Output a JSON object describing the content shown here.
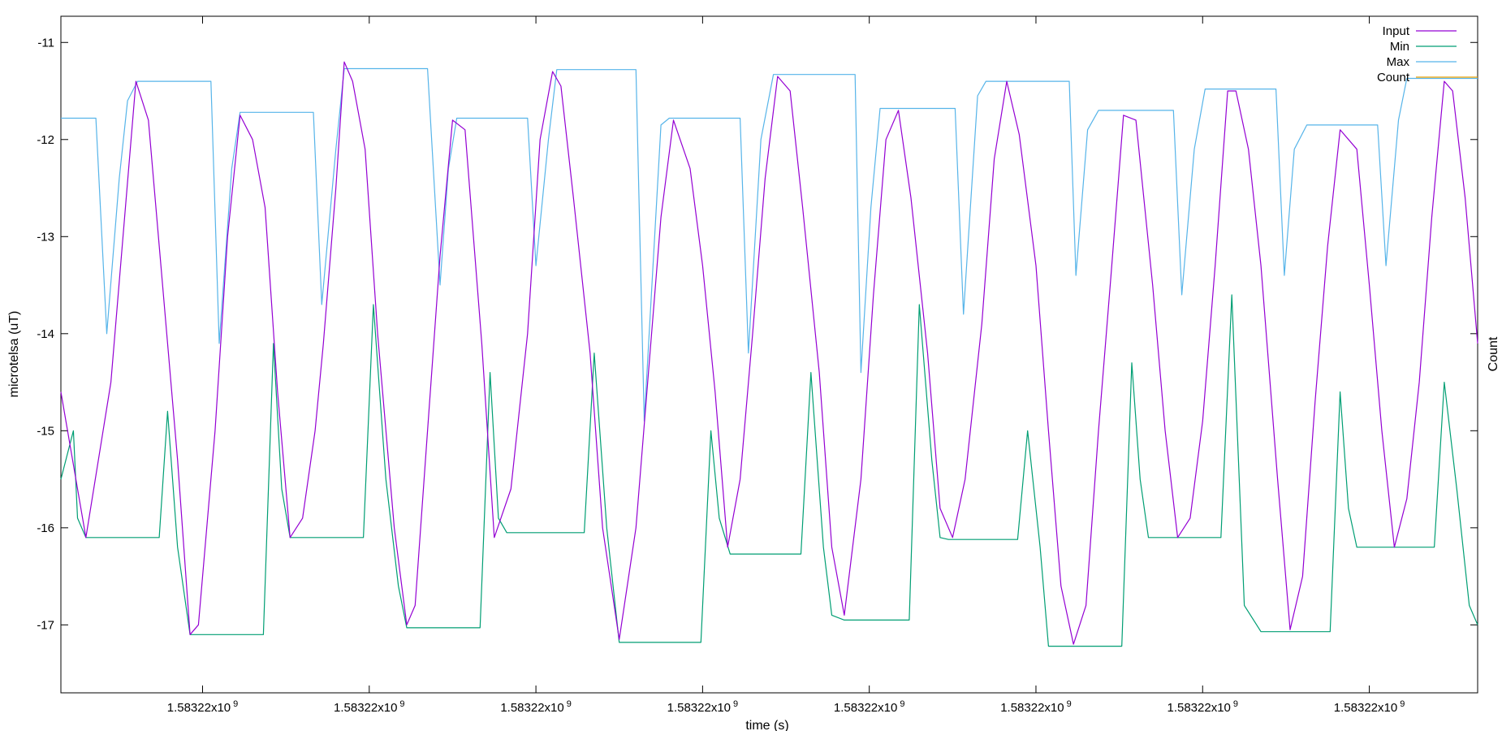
{
  "chart_data": {
    "type": "line",
    "xlabel": "time (s)",
    "ylabel": "microtelsa (uT)",
    "y2label": "Count",
    "ylim": [
      -17.7,
      -10.73
    ],
    "xlim": [
      0,
      170
    ],
    "yticks": [
      -11,
      -12,
      -13,
      -14,
      -15,
      -16,
      -17
    ],
    "xticks": [
      {
        "value": 17,
        "label": "1.58322x10",
        "exp": "9"
      },
      {
        "value": 37,
        "label": "1.58322x10",
        "exp": "9"
      },
      {
        "value": 57,
        "label": "1.58322x10",
        "exp": "9"
      },
      {
        "value": 77,
        "label": "1.58322x10",
        "exp": "9"
      },
      {
        "value": 97,
        "label": "1.58322x10",
        "exp": "9"
      },
      {
        "value": 117,
        "label": "1.58322x10",
        "exp": "9"
      },
      {
        "value": 137,
        "label": "1.58322x10",
        "exp": "9"
      },
      {
        "value": 157,
        "label": "1.58322x10",
        "exp": "9"
      }
    ],
    "grid": false,
    "legend_position": "top-right",
    "series": [
      {
        "name": "Input",
        "color": "#9400d3",
        "points": [
          [
            0,
            -14.6
          ],
          [
            3,
            -16.1
          ],
          [
            6,
            -14.5
          ],
          [
            9,
            -11.4
          ],
          [
            10.5,
            -11.8
          ],
          [
            12,
            -13.3
          ],
          [
            14,
            -15.3
          ],
          [
            15.5,
            -17.1
          ],
          [
            16.5,
            -17.0
          ],
          [
            18.5,
            -15.0
          ],
          [
            20,
            -13.0
          ],
          [
            21.5,
            -11.75
          ],
          [
            23,
            -12.0
          ],
          [
            24.5,
            -12.7
          ],
          [
            26,
            -14.6
          ],
          [
            27.5,
            -16.1
          ],
          [
            29,
            -15.9
          ],
          [
            30.5,
            -15.0
          ],
          [
            31.5,
            -14.1
          ],
          [
            33,
            -12.5
          ],
          [
            34,
            -11.2
          ],
          [
            35,
            -11.4
          ],
          [
            36.5,
            -12.1
          ],
          [
            38,
            -14.0
          ],
          [
            40,
            -16.0
          ],
          [
            41.5,
            -17.0
          ],
          [
            42.5,
            -16.8
          ],
          [
            44,
            -15.0
          ],
          [
            45.5,
            -13.2
          ],
          [
            47,
            -11.8
          ],
          [
            48.5,
            -11.9
          ],
          [
            50.5,
            -14.1
          ],
          [
            52,
            -16.1
          ],
          [
            54,
            -15.6
          ],
          [
            56,
            -14.0
          ],
          [
            57.5,
            -12.0
          ],
          [
            59,
            -11.3
          ],
          [
            60,
            -11.45
          ],
          [
            61.5,
            -12.6
          ],
          [
            63.5,
            -14.2
          ],
          [
            65,
            -16.0
          ],
          [
            67,
            -17.15
          ],
          [
            69,
            -16.0
          ],
          [
            70.5,
            -14.4
          ],
          [
            72,
            -12.8
          ],
          [
            73.5,
            -11.8
          ],
          [
            75.5,
            -12.3
          ],
          [
            77,
            -13.3
          ],
          [
            78.5,
            -14.6
          ],
          [
            80,
            -16.2
          ],
          [
            81.5,
            -15.5
          ],
          [
            83,
            -14.0
          ],
          [
            84.5,
            -12.4
          ],
          [
            86,
            -11.35
          ],
          [
            87.5,
            -11.5
          ],
          [
            89,
            -12.7
          ],
          [
            91,
            -14.4
          ],
          [
            92.5,
            -16.2
          ],
          [
            94,
            -16.9
          ],
          [
            96,
            -15.5
          ],
          [
            97.5,
            -13.6
          ],
          [
            99,
            -12.0
          ],
          [
            100.5,
            -11.7
          ],
          [
            102,
            -12.6
          ],
          [
            104,
            -14.2
          ],
          [
            105.5,
            -15.8
          ],
          [
            107,
            -16.1
          ],
          [
            108.5,
            -15.5
          ],
          [
            110.5,
            -13.9
          ],
          [
            112,
            -12.2
          ],
          [
            113.5,
            -11.4
          ],
          [
            115,
            -11.95
          ],
          [
            117,
            -13.3
          ],
          [
            118.5,
            -15.0
          ],
          [
            120,
            -16.6
          ],
          [
            121.5,
            -17.2
          ],
          [
            123,
            -16.8
          ],
          [
            124.5,
            -15.0
          ],
          [
            126,
            -13.4
          ],
          [
            127.5,
            -11.75
          ],
          [
            129,
            -11.8
          ],
          [
            131,
            -13.5
          ],
          [
            132.5,
            -15.0
          ],
          [
            134,
            -16.1
          ],
          [
            135.5,
            -15.9
          ],
          [
            137,
            -14.9
          ],
          [
            138.5,
            -13.3
          ],
          [
            140,
            -11.5
          ],
          [
            141,
            -11.5
          ],
          [
            142.5,
            -12.1
          ],
          [
            144,
            -13.3
          ],
          [
            146,
            -15.5
          ],
          [
            147.5,
            -17.05
          ],
          [
            149,
            -16.5
          ],
          [
            150.5,
            -14.7
          ],
          [
            152,
            -13.1
          ],
          [
            153.5,
            -11.9
          ],
          [
            155.5,
            -12.1
          ],
          [
            157,
            -13.5
          ],
          [
            158.5,
            -15.0
          ],
          [
            160,
            -16.2
          ],
          [
            161.5,
            -15.7
          ],
          [
            163,
            -14.5
          ],
          [
            164.5,
            -12.8
          ],
          [
            166,
            -11.4
          ],
          [
            167,
            -11.5
          ],
          [
            168.5,
            -12.6
          ],
          [
            170,
            -14.1
          ]
        ]
      },
      {
        "name": "Min",
        "color": "#009e73",
        "points": [
          [
            0,
            -15.5
          ],
          [
            1.5,
            -15.0
          ],
          [
            2,
            -15.9
          ],
          [
            3,
            -16.1
          ],
          [
            11.8,
            -16.1
          ],
          [
            12.8,
            -14.8
          ],
          [
            14,
            -16.2
          ],
          [
            15.5,
            -17.1
          ],
          [
            24.3,
            -17.1
          ],
          [
            25.5,
            -14.1
          ],
          [
            26.5,
            -15.6
          ],
          [
            27.5,
            -16.1
          ],
          [
            36.3,
            -16.1
          ],
          [
            37.5,
            -13.7
          ],
          [
            39,
            -15.5
          ],
          [
            40.5,
            -16.6
          ],
          [
            41.5,
            -17.03
          ],
          [
            50.3,
            -17.03
          ],
          [
            51.5,
            -14.4
          ],
          [
            52.5,
            -15.9
          ],
          [
            53.5,
            -16.05
          ],
          [
            62.8,
            -16.05
          ],
          [
            64,
            -14.2
          ],
          [
            65.5,
            -16.0
          ],
          [
            67,
            -17.18
          ],
          [
            76.8,
            -17.18
          ],
          [
            78,
            -15.0
          ],
          [
            79,
            -15.9
          ],
          [
            80.3,
            -16.27
          ],
          [
            88.8,
            -16.27
          ],
          [
            90,
            -14.4
          ],
          [
            91.5,
            -16.2
          ],
          [
            92.5,
            -16.9
          ],
          [
            94,
            -16.95
          ],
          [
            101.8,
            -16.95
          ],
          [
            103,
            -13.7
          ],
          [
            104.5,
            -15.3
          ],
          [
            105.5,
            -16.1
          ],
          [
            106.5,
            -16.12
          ],
          [
            114.8,
            -16.12
          ],
          [
            116,
            -15.0
          ],
          [
            117.5,
            -16.2
          ],
          [
            118.5,
            -17.22
          ],
          [
            127.3,
            -17.22
          ],
          [
            128.5,
            -14.3
          ],
          [
            129.5,
            -15.5
          ],
          [
            130.5,
            -16.1
          ],
          [
            139.2,
            -16.1
          ],
          [
            140.5,
            -13.6
          ],
          [
            142,
            -16.8
          ],
          [
            144,
            -17.07
          ],
          [
            152.3,
            -17.07
          ],
          [
            153.5,
            -14.6
          ],
          [
            154.5,
            -15.8
          ],
          [
            155.5,
            -16.2
          ],
          [
            164.8,
            -16.2
          ],
          [
            166,
            -14.5
          ],
          [
            167.5,
            -15.6
          ],
          [
            169,
            -16.8
          ],
          [
            170,
            -17.0
          ]
        ]
      },
      {
        "name": "Max",
        "color": "#56b4e9",
        "points": [
          [
            0,
            -11.78
          ],
          [
            4.2,
            -11.78
          ],
          [
            5.5,
            -14.0
          ],
          [
            7,
            -12.4
          ],
          [
            8,
            -11.6
          ],
          [
            9.2,
            -11.4
          ],
          [
            18,
            -11.4
          ],
          [
            19,
            -14.1
          ],
          [
            20.5,
            -12.3
          ],
          [
            21.5,
            -11.72
          ],
          [
            30.3,
            -11.72
          ],
          [
            31.3,
            -13.7
          ],
          [
            33,
            -12.1
          ],
          [
            34,
            -11.27
          ],
          [
            44,
            -11.27
          ],
          [
            45.5,
            -13.5
          ],
          [
            46.5,
            -12.3
          ],
          [
            47.5,
            -11.78
          ],
          [
            56,
            -11.78
          ],
          [
            57,
            -13.3
          ],
          [
            58.5,
            -12.0
          ],
          [
            59.5,
            -11.28
          ],
          [
            69,
            -11.28
          ],
          [
            70,
            -14.9
          ],
          [
            72,
            -11.85
          ],
          [
            73,
            -11.78
          ],
          [
            81.5,
            -11.78
          ],
          [
            82.5,
            -14.2
          ],
          [
            84,
            -12.0
          ],
          [
            85.5,
            -11.33
          ],
          [
            95.3,
            -11.33
          ],
          [
            96,
            -14.4
          ],
          [
            97.2,
            -12.7
          ],
          [
            98.3,
            -11.68
          ],
          [
            107.3,
            -11.68
          ],
          [
            108.3,
            -13.8
          ],
          [
            110,
            -11.55
          ],
          [
            111,
            -11.4
          ],
          [
            121,
            -11.4
          ],
          [
            121.8,
            -13.4
          ],
          [
            123.2,
            -11.9
          ],
          [
            124.5,
            -11.7
          ],
          [
            133.5,
            -11.7
          ],
          [
            134.5,
            -13.6
          ],
          [
            136,
            -12.1
          ],
          [
            137.3,
            -11.48
          ],
          [
            145.8,
            -11.48
          ],
          [
            146.8,
            -13.4
          ],
          [
            148,
            -12.1
          ],
          [
            149.5,
            -11.85
          ],
          [
            158,
            -11.85
          ],
          [
            159,
            -13.3
          ],
          [
            160.5,
            -11.8
          ],
          [
            161.5,
            -11.37
          ],
          [
            170,
            -11.37
          ]
        ]
      },
      {
        "name": "Count",
        "color": "#e69f00",
        "points": []
      }
    ]
  }
}
